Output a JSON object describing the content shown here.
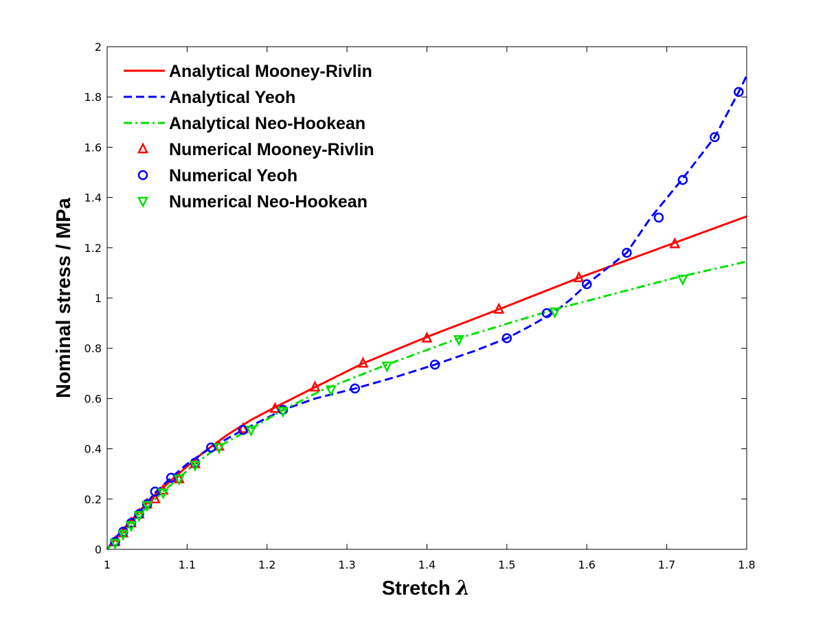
{
  "chart_data": {
    "type": "line",
    "xlabel": "Stretch",
    "xlabel_symbol": "λ",
    "ylabel": "Nominal stress / MPa",
    "xlim": [
      1,
      1.8
    ],
    "ylim": [
      0,
      2
    ],
    "xticks": [
      "1",
      "1.1",
      "1.2",
      "1.3",
      "1.4",
      "1.5",
      "1.6",
      "1.7",
      "1.8"
    ],
    "yticks": [
      "0",
      "0.2",
      "0.4",
      "0.6",
      "0.8",
      "1",
      "1.2",
      "1.4",
      "1.6",
      "1.8",
      "2"
    ],
    "grid": false,
    "legend_position": "top-left",
    "series": [
      {
        "name": "Analytical Mooney-Rivlin",
        "kind": "line",
        "color": "#ff0000",
        "style": "solid",
        "x": [
          1.0,
          1.01,
          1.02,
          1.03,
          1.04,
          1.05,
          1.06,
          1.08,
          1.1,
          1.12,
          1.15,
          1.18,
          1.21,
          1.26,
          1.32,
          1.4,
          1.49,
          1.59,
          1.71,
          1.8
        ],
        "y": [
          0.0,
          0.04,
          0.08,
          0.115,
          0.15,
          0.185,
          0.215,
          0.275,
          0.33,
          0.385,
          0.455,
          0.515,
          0.565,
          0.645,
          0.74,
          0.845,
          0.955,
          1.08,
          1.22,
          1.325
        ]
      },
      {
        "name": "Analytical Yeoh",
        "kind": "line",
        "color": "#0000ff",
        "style": "dashed",
        "x": [
          1.0,
          1.01,
          1.03,
          1.06,
          1.08,
          1.1,
          1.13,
          1.17,
          1.22,
          1.26,
          1.31,
          1.36,
          1.41,
          1.46,
          1.5,
          1.53,
          1.56,
          1.58,
          1.6,
          1.63,
          1.65,
          1.68,
          1.72,
          1.76,
          1.79,
          1.8
        ],
        "y": [
          0.0,
          0.045,
          0.11,
          0.225,
          0.285,
          0.34,
          0.405,
          0.475,
          0.555,
          0.6,
          0.64,
          0.685,
          0.735,
          0.79,
          0.84,
          0.89,
          0.945,
          0.995,
          1.055,
          1.13,
          1.18,
          1.32,
          1.475,
          1.64,
          1.82,
          1.885
        ]
      },
      {
        "name": "Analytical Neo-Hookean",
        "kind": "line",
        "color": "#00e000",
        "style": "dashdot",
        "x": [
          1.0,
          1.02,
          1.04,
          1.07,
          1.09,
          1.11,
          1.14,
          1.18,
          1.22,
          1.27,
          1.35,
          1.44,
          1.56,
          1.71,
          1.8
        ],
        "y": [
          0.0,
          0.065,
          0.14,
          0.23,
          0.285,
          0.34,
          0.41,
          0.48,
          0.555,
          0.635,
          0.735,
          0.84,
          0.955,
          1.08,
          1.145
        ]
      },
      {
        "name": "Numerical Mooney-Rivlin",
        "kind": "markers",
        "marker": "triangle-up",
        "color": "#ff0000",
        "x": [
          1.01,
          1.02,
          1.03,
          1.04,
          1.05,
          1.06,
          1.07,
          1.09,
          1.11,
          1.14,
          1.17,
          1.21,
          1.26,
          1.32,
          1.4,
          1.49,
          1.59,
          1.71
        ],
        "y": [
          0.03,
          0.065,
          0.105,
          0.14,
          0.18,
          0.2,
          0.235,
          0.28,
          0.34,
          0.41,
          0.48,
          0.56,
          0.645,
          0.74,
          0.84,
          0.955,
          1.08,
          1.215
        ]
      },
      {
        "name": "Numerical Yeoh",
        "kind": "markers",
        "marker": "circle",
        "color": "#0000ff",
        "x": [
          1.01,
          1.02,
          1.03,
          1.04,
          1.05,
          1.06,
          1.08,
          1.11,
          1.13,
          1.17,
          1.22,
          1.31,
          1.41,
          1.5,
          1.55,
          1.6,
          1.65,
          1.69,
          1.72,
          1.76,
          1.79
        ],
        "y": [
          0.03,
          0.07,
          0.105,
          0.14,
          0.18,
          0.23,
          0.285,
          0.345,
          0.405,
          0.475,
          0.555,
          0.64,
          0.735,
          0.84,
          0.94,
          1.055,
          1.18,
          1.32,
          1.47,
          1.64,
          1.82
        ]
      },
      {
        "name": "Numerical Neo-Hookean",
        "kind": "markers",
        "marker": "triangle-down",
        "color": "#00e000",
        "x": [
          1.01,
          1.02,
          1.03,
          1.04,
          1.05,
          1.07,
          1.09,
          1.11,
          1.14,
          1.18,
          1.22,
          1.28,
          1.35,
          1.44,
          1.56,
          1.72
        ],
        "y": [
          0.025,
          0.06,
          0.095,
          0.135,
          0.175,
          0.225,
          0.28,
          0.335,
          0.405,
          0.475,
          0.55,
          0.635,
          0.73,
          0.835,
          0.945,
          1.075
        ]
      }
    ]
  }
}
